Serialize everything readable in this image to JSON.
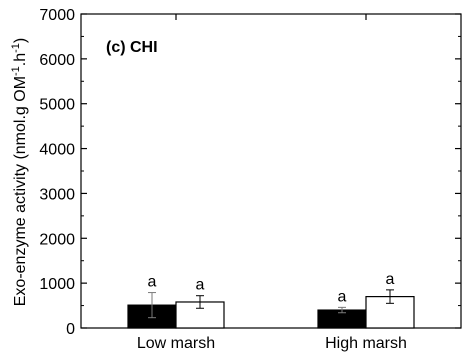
{
  "chart_data": {
    "type": "bar",
    "panel_label": "(c) CHI",
    "ylabel": "Exo-enzyme activity (nmol.g OM",
    "ylabel_sup1": "-1",
    "ylabel_mid": ".h",
    "ylabel_sup2": "-1",
    "ylabel_end": ")",
    "xlabel": "",
    "ylim": [
      0,
      7000
    ],
    "yticks": [
      "0",
      "1000",
      "2000",
      "3000",
      "4000",
      "5000",
      "6000",
      "7000"
    ],
    "categories": [
      "Low marsh",
      "High marsh"
    ],
    "series": [
      {
        "fill": "#000000",
        "values": [
          510,
          400
        ],
        "errors": [
          280,
          60
        ],
        "labels": [
          "a",
          "a"
        ]
      },
      {
        "fill": "#ffffff",
        "values": [
          580,
          700
        ],
        "errors": [
          140,
          150
        ],
        "labels": [
          "a",
          "a"
        ]
      }
    ],
    "grid": false,
    "legend": "none"
  }
}
